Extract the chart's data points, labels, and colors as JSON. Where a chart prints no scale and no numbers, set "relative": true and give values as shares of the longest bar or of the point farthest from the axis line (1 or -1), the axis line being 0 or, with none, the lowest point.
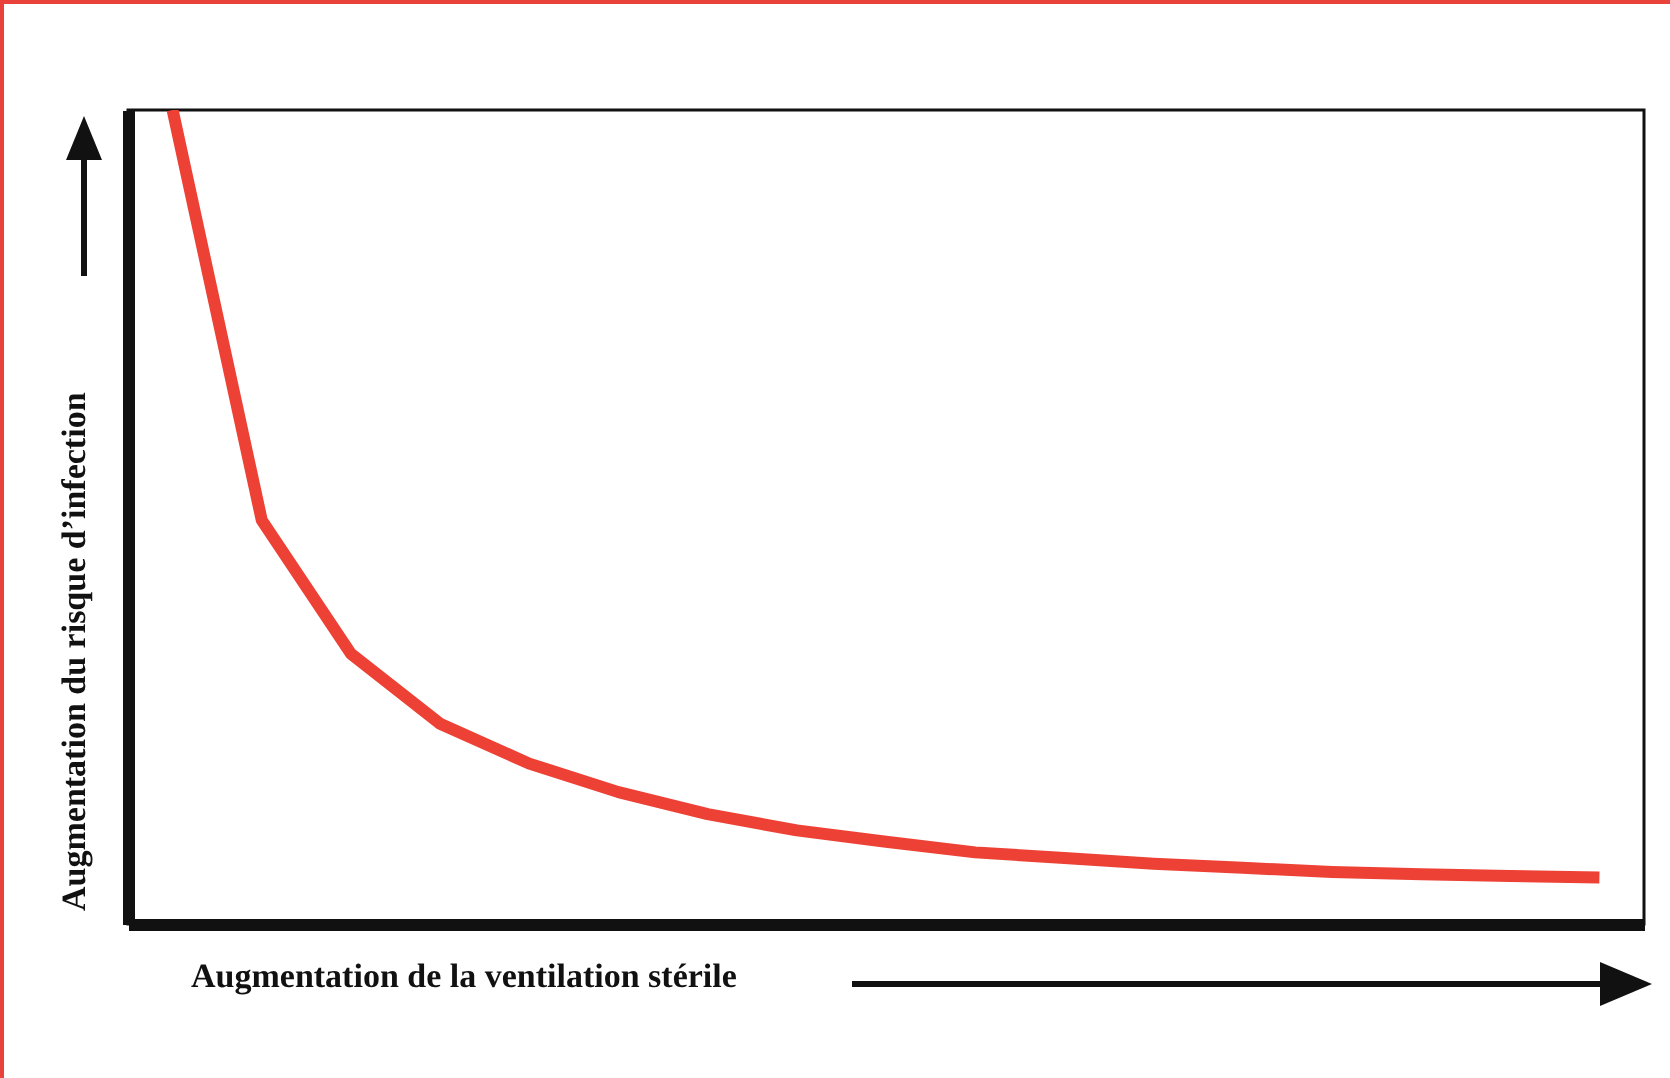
{
  "chart_data": {
    "type": "line",
    "relative": true,
    "xlabel": "Augmentation de la ventilation stérile",
    "ylabel": "Augmentation du risque d’infection",
    "categories": [
      null,
      null,
      null,
      null,
      null,
      null,
      null,
      null,
      null,
      null,
      null,
      null,
      null,
      null,
      null,
      null,
      null
    ],
    "series": [
      {
        "color": "#ee4135",
        "values": [
          1,
          0.496,
          0.332,
          0.246,
          0.197,
          0.162,
          0.135,
          0.115,
          0.101,
          0.088,
          0.081,
          0.074,
          0.069,
          0.064,
          0.061,
          0.059,
          0.057
        ]
      }
    ],
    "grid": false,
    "legend": false,
    "marker": "none",
    "line_style": "solid"
  }
}
